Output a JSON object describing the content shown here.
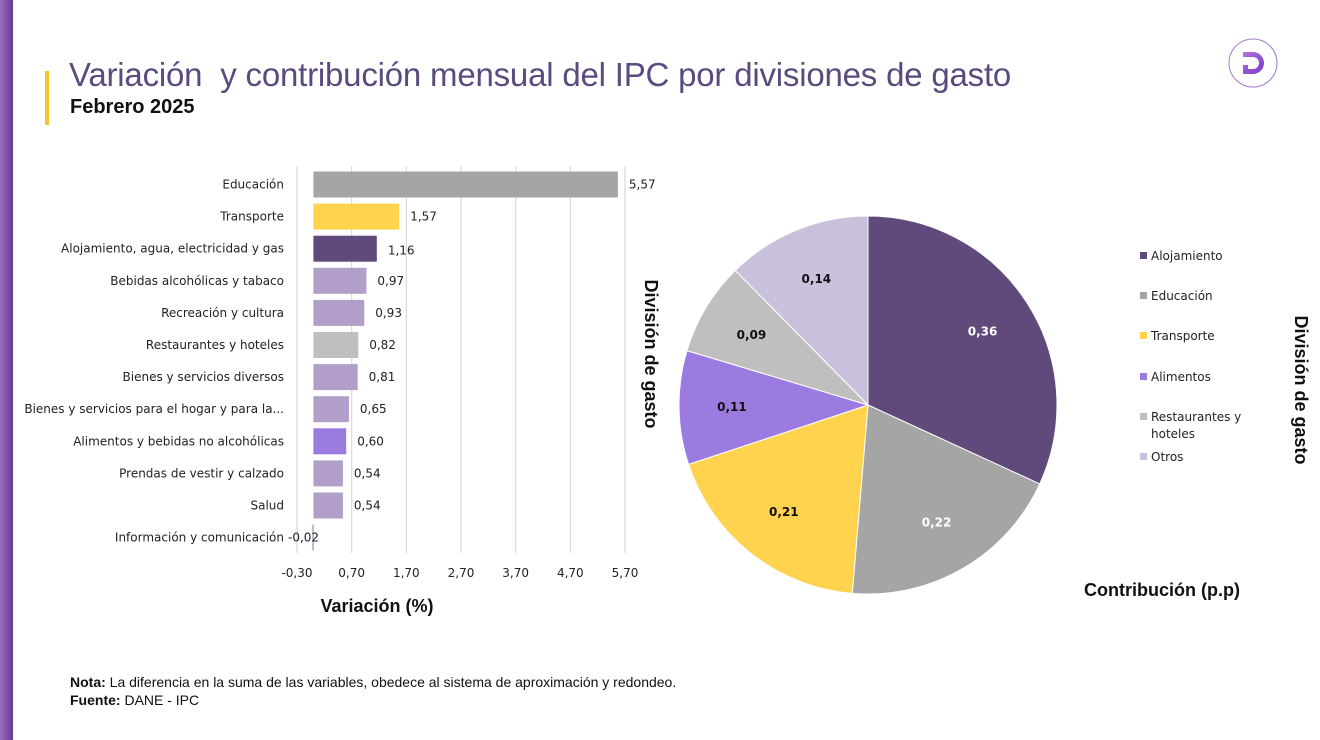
{
  "header": {
    "title": "Variación  y contribución mensual del IPC por divisiones de gasto",
    "subtitle": "Febrero 2025",
    "logo_letter": "D"
  },
  "footer": {
    "nota_label": "Nota:",
    "nota_text": " La diferencia en la suma de las variables, obedece al sistema de aproximación y redondeo.",
    "fuente_label": "Fuente:",
    "fuente_text": " DANE - IPC"
  },
  "colors": {
    "brand_purple": "#5e4a7c",
    "accent_yellow": "#f2c62b"
  },
  "chart_data": [
    {
      "type": "bar",
      "orientation": "horizontal",
      "xlabel": "Variación (%)",
      "xlim": [
        -0.3,
        5.7
      ],
      "xticks": [
        "-0,30",
        "0,70",
        "1,70",
        "2,70",
        "3,70",
        "4,70",
        "5,70"
      ],
      "xtick_values": [
        -0.3,
        0.7,
        1.7,
        2.7,
        3.7,
        4.7,
        5.7
      ],
      "grid": true,
      "categories": [
        "Educación",
        "Transporte",
        "Alojamiento, agua, electricidad y gas",
        "Bebidas alcohólicas y tabaco",
        "Recreación y cultura",
        "Restaurantes y hoteles",
        "Bienes y servicios diversos",
        "Bienes y servicios para el hogar y para la...",
        "Alimentos y bebidas no alcohólicas",
        "Prendas de vestir y calzado",
        "Salud",
        "Información y comunicación"
      ],
      "values": [
        5.57,
        1.57,
        1.16,
        0.97,
        0.93,
        0.82,
        0.81,
        0.65,
        0.6,
        0.54,
        0.54,
        -0.02
      ],
      "value_labels": [
        "5,57",
        "1,57",
        "1,16",
        "0,97",
        "0,93",
        "0,82",
        "0,81",
        "0,65",
        "0,60",
        "0,54",
        "0,54",
        "-0,02"
      ],
      "bar_colors": [
        "#a5a5a5",
        "#ffd34e",
        "#5f4a7b",
        "#b19fca",
        "#b19fca",
        "#bfbfbf",
        "#b19fca",
        "#b19fca",
        "#9b7be0",
        "#b19fca",
        "#b19fca",
        "#b19fca"
      ]
    },
    {
      "type": "pie",
      "title_left": "División de gasto",
      "title_right": "División de gasto",
      "xlabel": "Contribución (p.p)",
      "legend_position": "right",
      "labels": [
        "Alojamiento",
        "Educación",
        "Transporte",
        "Alimentos",
        "Restaurantes y hoteles",
        "Otros"
      ],
      "legend_lines": [
        [
          "Alojamiento"
        ],
        [
          "Educación"
        ],
        [
          "Transporte"
        ],
        [
          "Alimentos"
        ],
        [
          "Restaurantes y",
          "hoteles"
        ],
        [
          "Otros"
        ]
      ],
      "values": [
        0.36,
        0.22,
        0.21,
        0.11,
        0.09,
        0.14
      ],
      "value_labels": [
        "0,36",
        "0,22",
        "0,21",
        "0,11",
        "0,09",
        "0,14"
      ],
      "colors": [
        "#5f4a7b",
        "#a5a5a5",
        "#ffd34e",
        "#9b7be0",
        "#bfbfbf",
        "#c9c0dc"
      ],
      "label_colors": [
        "#ffffff",
        "#ffffff",
        "#111111",
        "#111111",
        "#111111",
        "#111111"
      ]
    }
  ]
}
